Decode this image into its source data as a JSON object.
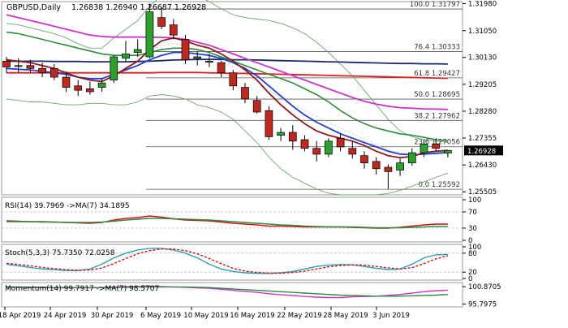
{
  "header": {
    "symbol": "GBPUSD,Daily",
    "ohlc": "1.26838 1.26940 1.26687 1.26928"
  },
  "colors": {
    "bull": "#2ca02c",
    "bear": "#c0281e",
    "ema_fast": "#8b1a1a",
    "ema_blue": "#1f3fd6",
    "ma_green": "#2e8b3e",
    "ma_pink": "#cc33cc",
    "ma_navy": "#1a2a6c",
    "ma_red": "#e02020",
    "bb": "#6aa86a",
    "bb_mid": "#cccccc",
    "fib": "#555555",
    "rsi": "#d11010",
    "rsi_ma": "#2e8b3e",
    "stoch_k": "#2aa0b8",
    "stoch_d": "#d11010",
    "mom": "#cc33cc",
    "mom_ma": "#2e8b3e",
    "last_price_bg": "#000000"
  },
  "chart_data": [
    {
      "type": "candlestick",
      "ylim": [
        1.254,
        1.3205
      ],
      "y_ticks": [
        "1.31980",
        "1.31050",
        "1.30130",
        "1.29205",
        "1.28280",
        "1.27355",
        "1.26430",
        "1.25505"
      ],
      "last_price_label": "1.26928",
      "x_tick_labels": [
        "18 Apr 2019",
        "24 Apr 2019",
        "30 Apr 2019",
        "6 May 2019",
        "10 May 2019",
        "16 May 2019",
        "22 May 2019",
        "28 May 2019",
        "3 Jun 2019"
      ],
      "candles": [
        {
          "o": 1.3,
          "h": 1.3015,
          "l": 1.296,
          "c": 1.298
        },
        {
          "o": 1.2985,
          "h": 1.301,
          "l": 1.296,
          "c": 1.2985
        },
        {
          "o": 1.2985,
          "h": 1.3005,
          "l": 1.296,
          "c": 1.2975
        },
        {
          "o": 1.2975,
          "h": 1.2995,
          "l": 1.2945,
          "c": 1.296
        },
        {
          "o": 1.2975,
          "h": 1.299,
          "l": 1.2935,
          "c": 1.2945
        },
        {
          "o": 1.2945,
          "h": 1.2965,
          "l": 1.2895,
          "c": 1.291
        },
        {
          "o": 1.2915,
          "h": 1.2935,
          "l": 1.288,
          "c": 1.29
        },
        {
          "o": 1.2905,
          "h": 1.293,
          "l": 1.2885,
          "c": 1.2895
        },
        {
          "o": 1.291,
          "h": 1.294,
          "l": 1.2895,
          "c": 1.2925
        },
        {
          "o": 1.2935,
          "h": 1.302,
          "l": 1.2925,
          "c": 1.3015
        },
        {
          "o": 1.301,
          "h": 1.307,
          "l": 1.3,
          "c": 1.3025
        },
        {
          "o": 1.303,
          "h": 1.3075,
          "l": 1.3015,
          "c": 1.304
        },
        {
          "o": 1.3015,
          "h": 1.3198,
          "l": 1.301,
          "c": 1.317
        },
        {
          "o": 1.315,
          "h": 1.3185,
          "l": 1.311,
          "c": 1.312
        },
        {
          "o": 1.3125,
          "h": 1.3145,
          "l": 1.3075,
          "c": 1.309
        },
        {
          "o": 1.3075,
          "h": 1.309,
          "l": 1.299,
          "c": 1.3005
        },
        {
          "o": 1.301,
          "h": 1.3035,
          "l": 1.2985,
          "c": 1.3015
        },
        {
          "o": 1.3,
          "h": 1.3025,
          "l": 1.298,
          "c": 1.3
        },
        {
          "o": 1.2995,
          "h": 1.3,
          "l": 1.2945,
          "c": 1.296
        },
        {
          "o": 1.296,
          "h": 1.297,
          "l": 1.29,
          "c": 1.2915
        },
        {
          "o": 1.291,
          "h": 1.2925,
          "l": 1.2855,
          "c": 1.287
        },
        {
          "o": 1.2865,
          "h": 1.288,
          "l": 1.282,
          "c": 1.2825
        },
        {
          "o": 1.283,
          "h": 1.2845,
          "l": 1.273,
          "c": 1.274
        },
        {
          "o": 1.2745,
          "h": 1.277,
          "l": 1.2725,
          "c": 1.2755
        },
        {
          "o": 1.2755,
          "h": 1.278,
          "l": 1.2695,
          "c": 1.2725
        },
        {
          "o": 1.273,
          "h": 1.2745,
          "l": 1.269,
          "c": 1.27
        },
        {
          "o": 1.27,
          "h": 1.2725,
          "l": 1.2655,
          "c": 1.268
        },
        {
          "o": 1.268,
          "h": 1.2735,
          "l": 1.267,
          "c": 1.2725
        },
        {
          "o": 1.2735,
          "h": 1.275,
          "l": 1.269,
          "c": 1.2705
        },
        {
          "o": 1.27,
          "h": 1.2725,
          "l": 1.2665,
          "c": 1.268
        },
        {
          "o": 1.2675,
          "h": 1.269,
          "l": 1.263,
          "c": 1.265
        },
        {
          "o": 1.2655,
          "h": 1.267,
          "l": 1.261,
          "c": 1.263
        },
        {
          "o": 1.2635,
          "h": 1.2645,
          "l": 1.256,
          "c": 1.262
        },
        {
          "o": 1.2625,
          "h": 1.2665,
          "l": 1.2605,
          "c": 1.265
        },
        {
          "o": 1.265,
          "h": 1.27,
          "l": 1.264,
          "c": 1.2685
        },
        {
          "o": 1.2685,
          "h": 1.273,
          "l": 1.267,
          "c": 1.2715
        },
        {
          "o": 1.2715,
          "h": 1.2735,
          "l": 1.269,
          "c": 1.27
        },
        {
          "o": 1.2684,
          "h": 1.2694,
          "l": 1.2669,
          "c": 1.2693
        }
      ],
      "fibonacci": [
        {
          "label": "100.0 1.31797",
          "value": 1.31797
        },
        {
          "label": "76.4 1.30333",
          "value": 1.30333
        },
        {
          "label": "61.8 1.29427",
          "value": 1.29427
        },
        {
          "label": "50.0 1.28695",
          "value": 1.28695
        },
        {
          "label": "38.2 1.27962",
          "value": 1.27962
        },
        {
          "label": "23.6 1.27056",
          "value": 1.27056
        },
        {
          "label": "0.0 1.25592",
          "value": 1.25592
        }
      ],
      "series": [
        {
          "key": "ema_fast",
          "values": [
            1.3005,
            1.3,
            1.2995,
            1.2985,
            1.2975,
            1.296,
            1.2945,
            1.2935,
            1.293,
            1.295,
            1.2975,
            1.3,
            1.304,
            1.307,
            1.308,
            1.307,
            1.3055,
            1.3045,
            1.3025,
            1.3,
            1.297,
            1.2935,
            1.289,
            1.285,
            1.2815,
            1.2785,
            1.276,
            1.2745,
            1.2735,
            1.2725,
            1.271,
            1.269,
            1.2675,
            1.2668,
            1.2672,
            1.2685,
            1.269,
            1.2693
          ]
        },
        {
          "key": "ema_blue",
          "values": [
            1.2975,
            1.2972,
            1.297,
            1.2965,
            1.296,
            1.2955,
            1.2945,
            1.294,
            1.294,
            1.2955,
            1.297,
            1.2985,
            1.3005,
            1.302,
            1.303,
            1.303,
            1.3025,
            1.302,
            1.301,
            1.2995,
            1.2975,
            1.295,
            1.2915,
            1.288,
            1.2845,
            1.2815,
            1.279,
            1.277,
            1.275,
            1.2735,
            1.272,
            1.2705,
            1.269,
            1.268,
            1.2678,
            1.268,
            1.2683,
            1.2686
          ]
        },
        {
          "key": "ma_green",
          "values": [
            1.31,
            1.3095,
            1.3085,
            1.3075,
            1.3065,
            1.3055,
            1.3045,
            1.3035,
            1.3025,
            1.302,
            1.302,
            1.302,
            1.303,
            1.304,
            1.3045,
            1.3045,
            1.304,
            1.303,
            1.3015,
            1.3,
            1.2985,
            1.297,
            1.2955,
            1.294,
            1.2925,
            1.2905,
            1.2885,
            1.286,
            1.283,
            1.2805,
            1.2785,
            1.277,
            1.276,
            1.275,
            1.2745,
            1.2738,
            1.273,
            1.2725
          ]
        },
        {
          "key": "ma_pink",
          "values": [
            1.316,
            1.315,
            1.314,
            1.313,
            1.312,
            1.311,
            1.31,
            1.309,
            1.3085,
            1.3083,
            1.3083,
            1.3083,
            1.3083,
            1.3082,
            1.308,
            1.3075,
            1.3065,
            1.3055,
            1.304,
            1.3025,
            1.301,
            1.2995,
            1.298,
            1.2965,
            1.295,
            1.2935,
            1.292,
            1.2905,
            1.289,
            1.2875,
            1.2862,
            1.2852,
            1.2845,
            1.284,
            1.2838,
            1.2836,
            1.2835,
            1.2834
          ]
        },
        {
          "key": "ma_navy",
          "values": [
            1.3,
            1.3,
            1.3,
            1.3,
            1.2999,
            1.2999,
            1.2999,
            1.2998,
            1.2998,
            1.2998,
            1.2998,
            1.2999,
            1.3,
            1.3002,
            1.3004,
            1.3005,
            1.3006,
            1.3006,
            1.3006,
            1.3005,
            1.3005,
            1.3004,
            1.3003,
            1.3002,
            1.3001,
            1.3,
            1.2999,
            1.2998,
            1.2997,
            1.2996,
            1.2995,
            1.2994,
            1.2993,
            1.2992,
            1.2992,
            1.2991,
            1.2991,
            1.299
          ]
        },
        {
          "key": "ma_red",
          "values": [
            1.296,
            1.296,
            1.296,
            1.296,
            1.296,
            1.296,
            1.296,
            1.296,
            1.296,
            1.296,
            1.296,
            1.296,
            1.296,
            1.2961,
            1.2961,
            1.2961,
            1.2961,
            1.296,
            1.2959,
            1.2958,
            1.2958,
            1.2957,
            1.2956,
            1.2955,
            1.2954,
            1.2953,
            1.2952,
            1.2951,
            1.295,
            1.2949,
            1.2948,
            1.2947,
            1.2946,
            1.2945,
            1.2944,
            1.2943,
            1.2942,
            1.2941
          ]
        },
        {
          "key": "bb_upper",
          "values": [
            1.313,
            1.3125,
            1.3115,
            1.3105,
            1.3095,
            1.308,
            1.306,
            1.3045,
            1.3045,
            1.308,
            1.311,
            1.314,
            1.319,
            1.3225,
            1.3245,
            1.324,
            1.3225,
            1.3205,
            1.318,
            1.316,
            1.315,
            1.3145,
            1.314,
            1.313,
            1.3115,
            1.3095,
            1.3065,
            1.303,
            1.299,
            1.295,
            1.29,
            1.285,
            1.28,
            1.276,
            1.274,
            1.273,
            1.2725,
            1.272
          ]
        },
        {
          "key": "bb_lower",
          "values": [
            1.287,
            1.2865,
            1.286,
            1.286,
            1.2855,
            1.285,
            1.285,
            1.2855,
            1.2855,
            1.285,
            1.285,
            1.286,
            1.288,
            1.2885,
            1.288,
            1.287,
            1.285,
            1.284,
            1.2825,
            1.28,
            1.276,
            1.272,
            1.267,
            1.263,
            1.26,
            1.258,
            1.256,
            1.2545,
            1.254,
            1.254,
            1.254,
            1.254,
            1.2545,
            1.2555,
            1.257,
            1.2585,
            1.26,
            1.2615
          ]
        },
        {
          "key": "bb_mid",
          "values": [
            1.3,
            1.2995,
            1.2985,
            1.298,
            1.2975,
            1.2965,
            1.2955,
            1.295,
            1.295,
            1.2965,
            1.298,
            1.3,
            1.3035,
            1.3055,
            1.306,
            1.3055,
            1.304,
            1.302,
            1.3,
            1.298,
            1.2955,
            1.293,
            1.29,
            1.2875,
            1.285,
            1.283,
            1.281,
            1.279,
            1.277,
            1.275,
            1.273,
            1.271,
            1.2695,
            1.2685,
            1.268,
            1.268,
            1.268,
            1.268
          ]
        }
      ]
    },
    {
      "type": "line",
      "title": "RSI(14) 39.7969 ->MA(7) 34.1895",
      "ylim": [
        0,
        100
      ],
      "levels": [
        70,
        30
      ],
      "y_ticks": [
        "100",
        "70",
        "30",
        "0"
      ],
      "series": [
        {
          "key": "rsi",
          "values": [
            48,
            47,
            46,
            46,
            45,
            44,
            43,
            42,
            44,
            50,
            54,
            56,
            60,
            57,
            53,
            50,
            49,
            48,
            45,
            42,
            40,
            38,
            35,
            35,
            34,
            33,
            33,
            33,
            33,
            32,
            31,
            30,
            30,
            32,
            35,
            38,
            40,
            40
          ]
        },
        {
          "key": "rsi_ma",
          "values": [
            46,
            46,
            46,
            45,
            45,
            44,
            44,
            44,
            45,
            47,
            50,
            52,
            54,
            54,
            53,
            52,
            51,
            50,
            48,
            46,
            44,
            42,
            40,
            38,
            37,
            35,
            34,
            33,
            33,
            33,
            32,
            31,
            31,
            31,
            32,
            33,
            34,
            34
          ]
        }
      ]
    },
    {
      "type": "line",
      "title": "Stoch(5,3,3) 75.7350 72.0258",
      "ylim": [
        0,
        100
      ],
      "levels": [
        80,
        20
      ],
      "y_ticks": [
        "100",
        "80",
        "20",
        "0"
      ],
      "series": [
        {
          "key": "stoch_k",
          "values": [
            45,
            40,
            35,
            30,
            28,
            25,
            25,
            30,
            45,
            65,
            80,
            90,
            95,
            95,
            90,
            80,
            65,
            45,
            30,
            22,
            18,
            16,
            16,
            18,
            22,
            30,
            38,
            42,
            44,
            43,
            38,
            32,
            28,
            30,
            45,
            65,
            75,
            76
          ]
        },
        {
          "key": "stoch_d",
          "values": [
            48,
            44,
            40,
            35,
            31,
            28,
            26,
            27,
            33,
            47,
            63,
            78,
            88,
            93,
            93,
            88,
            78,
            63,
            47,
            32,
            23,
            19,
            17,
            17,
            19,
            23,
            30,
            37,
            41,
            43,
            42,
            38,
            33,
            30,
            34,
            47,
            62,
            72
          ]
        }
      ]
    },
    {
      "type": "line",
      "title": "Momentum(14) 99.7917 ->MA(7) 98.5707",
      "ylim": [
        95.2,
        101.6
      ],
      "y_ticks": [
        "100.8705",
        "95.7975"
      ],
      "series": [
        {
          "key": "mom",
          "values": [
            100.7,
            100.7,
            100.6,
            100.6,
            100.5,
            100.5,
            100.5,
            100.5,
            100.6,
            100.8,
            100.9,
            100.9,
            101.0,
            100.9,
            100.8,
            100.7,
            100.5,
            100.4,
            100.1,
            99.8,
            99.5,
            99.2,
            98.8,
            98.5,
            98.3,
            98.0,
            97.8,
            97.7,
            97.7,
            97.9,
            98.0,
            98.1,
            98.3,
            98.6,
            99.0,
            99.4,
            99.7,
            99.8
          ]
        },
        {
          "key": "mom_ma",
          "values": [
            100.8,
            100.8,
            100.7,
            100.7,
            100.6,
            100.6,
            100.6,
            100.6,
            100.6,
            100.6,
            100.7,
            100.8,
            100.8,
            100.8,
            100.8,
            100.8,
            100.7,
            100.6,
            100.4,
            100.2,
            100.0,
            99.8,
            99.6,
            99.4,
            99.2,
            99.0,
            98.8,
            98.6,
            98.4,
            98.3,
            98.2,
            98.1,
            98.1,
            98.1,
            98.2,
            98.3,
            98.4,
            98.6
          ]
        }
      ]
    }
  ]
}
